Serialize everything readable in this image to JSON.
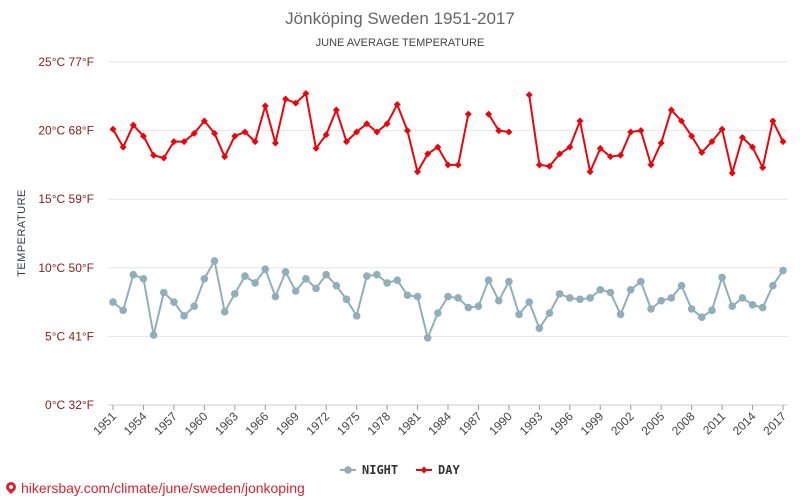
{
  "chart_data": {
    "type": "line",
    "title": "Jönköping Sweden 1951-2017",
    "subtitle": "JUNE AVERAGE TEMPERATURE",
    "ylabel": "TEMPERATURE",
    "xlabel": "",
    "ylim": [
      0,
      25
    ],
    "yticks": [
      {
        "value": 0,
        "label": "0°C 32°F"
      },
      {
        "value": 5,
        "label": "5°C 41°F"
      },
      {
        "value": 10,
        "label": "10°C 50°F"
      },
      {
        "value": 15,
        "label": "15°C 59°F"
      },
      {
        "value": 20,
        "label": "20°C 68°F"
      },
      {
        "value": 25,
        "label": "25°C 77°F"
      }
    ],
    "x": [
      1951,
      1952,
      1953,
      1954,
      1955,
      1956,
      1957,
      1958,
      1959,
      1960,
      1961,
      1962,
      1963,
      1964,
      1965,
      1966,
      1967,
      1968,
      1969,
      1970,
      1971,
      1972,
      1973,
      1974,
      1975,
      1976,
      1977,
      1978,
      1979,
      1980,
      1981,
      1982,
      1983,
      1984,
      1985,
      1986,
      1987,
      1988,
      1989,
      1990,
      1991,
      1992,
      1993,
      1994,
      1995,
      1996,
      1997,
      1998,
      1999,
      2000,
      2001,
      2002,
      2003,
      2004,
      2005,
      2006,
      2007,
      2008,
      2009,
      2010,
      2011,
      2012,
      2013,
      2014,
      2015,
      2016,
      2017
    ],
    "xtick_labels": [
      "1951",
      "1954",
      "1957",
      "1960",
      "1963",
      "1966",
      "1969",
      "1972",
      "1975",
      "1978",
      "1981",
      "1984",
      "1987",
      "1990",
      "1993",
      "1996",
      "1999",
      "2002",
      "2005",
      "2008",
      "2011",
      "2014",
      "2017"
    ],
    "grid": true,
    "legend_position": "bottom",
    "series": [
      {
        "name": "NIGHT",
        "color": "#90afba",
        "values": [
          7.5,
          6.9,
          9.5,
          9.2,
          5.1,
          8.2,
          7.5,
          6.5,
          7.2,
          9.2,
          10.5,
          6.8,
          8.1,
          9.4,
          8.9,
          9.9,
          7.9,
          9.7,
          8.3,
          9.2,
          8.5,
          9.5,
          8.7,
          7.7,
          6.5,
          9.4,
          9.5,
          8.9,
          9.1,
          8.0,
          7.9,
          4.9,
          6.7,
          7.9,
          7.8,
          7.1,
          7.2,
          9.1,
          7.6,
          9.0,
          6.6,
          7.5,
          5.6,
          6.7,
          8.1,
          7.8,
          7.7,
          7.8,
          8.4,
          8.2,
          6.6,
          8.4,
          9.0,
          7.0,
          7.6,
          7.8,
          8.7,
          7.0,
          6.4,
          6.9,
          9.3,
          7.2,
          7.8,
          7.3,
          7.1,
          8.7,
          9.8
        ]
      },
      {
        "name": "DAY",
        "color": "#e8060c",
        "values": [
          20.1,
          18.8,
          20.4,
          19.6,
          18.2,
          18.0,
          19.2,
          19.2,
          19.8,
          20.7,
          19.8,
          18.1,
          19.6,
          19.9,
          19.2,
          21.8,
          19.1,
          22.3,
          22.0,
          22.7,
          18.7,
          19.7,
          21.5,
          19.2,
          19.9,
          20.5,
          19.9,
          20.5,
          21.9,
          20.0,
          17.0,
          18.3,
          18.8,
          17.5,
          17.5,
          21.2,
          null,
          21.2,
          20.0,
          19.9,
          null,
          22.6,
          17.5,
          17.4,
          18.3,
          18.8,
          20.7,
          17.0,
          18.7,
          18.1,
          18.2,
          19.9,
          20.0,
          17.5,
          19.1,
          21.5,
          20.7,
          19.6,
          18.4,
          19.2,
          20.1,
          16.9,
          19.5,
          18.8,
          17.3,
          20.7,
          19.2
        ]
      }
    ]
  },
  "footer": {
    "url_text": "hikersbay.com/climate/june/sweden/jonkoping"
  }
}
